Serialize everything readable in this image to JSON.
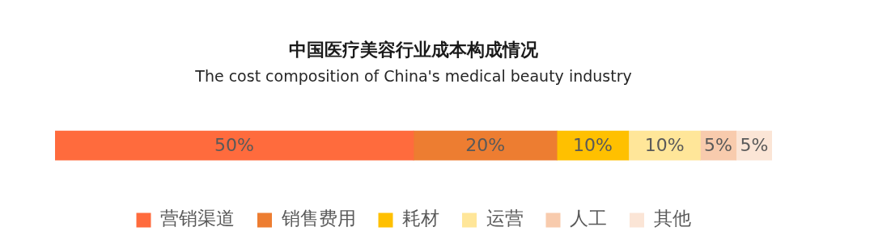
{
  "chart_data": {
    "type": "bar",
    "orientation": "horizontal",
    "stacked": true,
    "title": "中国医疗美容行业成本构成情况",
    "subtitle": "The cost composition of China's medical beauty industry",
    "categories": [
      null
    ],
    "tick_labels": false,
    "legend": "bottom",
    "series": [
      {
        "name": "营销渠道",
        "color": "#ff6b3d",
        "values": [
          50
        ],
        "value_labels": [
          "50%"
        ]
      },
      {
        "name": "销售费用",
        "color": "#ed7d31",
        "values": [
          20
        ],
        "value_labels": [
          "20%"
        ]
      },
      {
        "name": "耗材",
        "color": "#ffc000",
        "values": [
          10
        ],
        "value_labels": [
          "10%"
        ]
      },
      {
        "name": "运营",
        "color": "#ffe699",
        "values": [
          10
        ],
        "value_labels": [
          "10%"
        ]
      },
      {
        "name": "人工",
        "color": "#f8cbad",
        "values": [
          5
        ],
        "value_labels": [
          "5%"
        ]
      },
      {
        "name": "其他",
        "color": "#fbe5d6",
        "values": [
          5
        ],
        "value_labels": [
          "5%"
        ]
      }
    ]
  }
}
